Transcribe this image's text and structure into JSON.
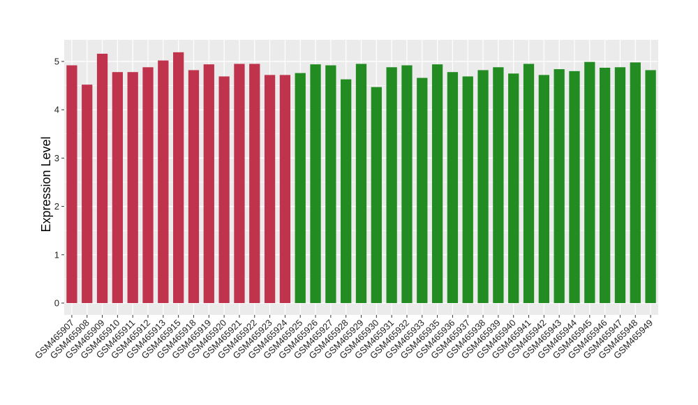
{
  "chart_data": {
    "type": "bar",
    "title": "",
    "xlabel": "",
    "ylabel": "Expression Level",
    "ylim": [
      0,
      5.45
    ],
    "y_ticks": [
      0,
      1,
      2,
      3,
      4,
      5
    ],
    "grid": true,
    "legend": "none",
    "colors": {
      "group_1": "#c0334d",
      "group_2": "#228b22",
      "panel_bg": "#ebebeb",
      "grid": "#ffffff"
    },
    "categories": [
      "GSM465907",
      "GSM465908",
      "GSM465909",
      "GSM465910",
      "GSM465911",
      "GSM465912",
      "GSM465913",
      "GSM465915",
      "GSM465918",
      "GSM465919",
      "GSM465920",
      "GSM465921",
      "GSM465922",
      "GSM465923",
      "GSM465924",
      "GSM465925",
      "GSM465926",
      "GSM465927",
      "GSM465928",
      "GSM465929",
      "GSM465930",
      "GSM465931",
      "GSM465932",
      "GSM465933",
      "GSM465935",
      "GSM465936",
      "GSM465937",
      "GSM465938",
      "GSM465939",
      "GSM465940",
      "GSM465941",
      "GSM465942",
      "GSM465943",
      "GSM465944",
      "GSM465945",
      "GSM465946",
      "GSM465947",
      "GSM465948",
      "GSM465949"
    ],
    "values": [
      4.92,
      4.52,
      5.16,
      4.78,
      4.78,
      4.88,
      5.02,
      5.19,
      4.82,
      4.94,
      4.69,
      4.95,
      4.95,
      4.72,
      4.72,
      4.76,
      4.94,
      4.92,
      4.63,
      4.95,
      4.47,
      4.88,
      4.92,
      4.66,
      4.94,
      4.78,
      4.69,
      4.82,
      4.88,
      4.75,
      4.95,
      4.72,
      4.84,
      4.8,
      4.99,
      4.87,
      4.88,
      4.98,
      4.82
    ],
    "groups": [
      1,
      1,
      1,
      1,
      1,
      1,
      1,
      1,
      1,
      1,
      1,
      1,
      1,
      1,
      1,
      2,
      2,
      2,
      2,
      2,
      2,
      2,
      2,
      2,
      2,
      2,
      2,
      2,
      2,
      2,
      2,
      2,
      2,
      2,
      2,
      2,
      2,
      2,
      2
    ]
  }
}
